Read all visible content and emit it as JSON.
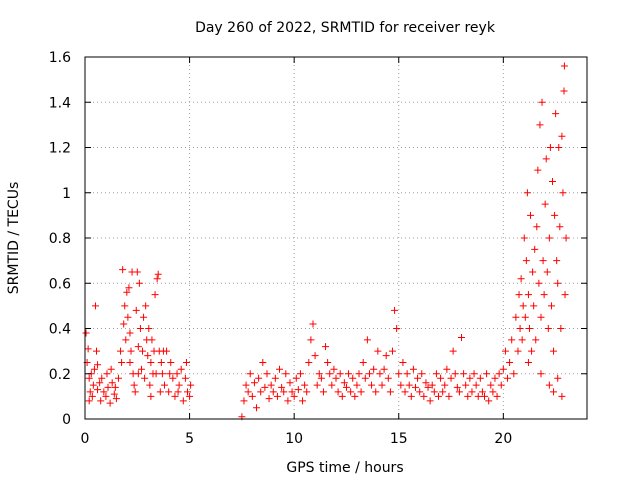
{
  "chart_data": {
    "type": "scatter",
    "title": "Day 260 of 2022, SRMTID for receiver reyk",
    "xlabel": "GPS time / hours",
    "ylabel": "SRMTID / TECUs",
    "xlim": [
      0,
      24
    ],
    "ylim": [
      0,
      1.6
    ],
    "xticks": [
      0,
      5,
      10,
      15,
      20
    ],
    "xtick_labels": [
      "0",
      "5",
      "10",
      "15",
      "20"
    ],
    "yticks": [
      0,
      0.2,
      0.4,
      0.6,
      0.8,
      1,
      1.2,
      1.4,
      1.6
    ],
    "ytick_labels": [
      "0",
      "0.2",
      "0.4",
      "0.6",
      "0.8",
      "1",
      "1.2",
      "1.4",
      "1.6"
    ],
    "grid": true,
    "marker": "+",
    "series": [
      {
        "name": "SRMTID",
        "color": "#ff0000",
        "points": [
          [
            0.05,
            0.38
          ],
          [
            0.1,
            0.25
          ],
          [
            0.15,
            0.31
          ],
          [
            0.2,
            0.18
          ],
          [
            0.25,
            0.12
          ],
          [
            0.3,
            0.2
          ],
          [
            0.35,
            0.1
          ],
          [
            0.4,
            0.15
          ],
          [
            0.45,
            0.22
          ],
          [
            0.5,
            0.5
          ],
          [
            0.55,
            0.3
          ],
          [
            0.6,
            0.13
          ],
          [
            0.7,
            0.16
          ],
          [
            0.75,
            0.08
          ],
          [
            0.8,
            0.18
          ],
          [
            0.9,
            0.12
          ],
          [
            1.0,
            0.1
          ],
          [
            1.05,
            0.2
          ],
          [
            1.1,
            0.14
          ],
          [
            1.2,
            0.07
          ],
          [
            1.3,
            0.16
          ],
          [
            1.4,
            0.11
          ],
          [
            1.5,
            0.09
          ],
          [
            1.6,
            0.18
          ],
          [
            1.7,
            0.3
          ],
          [
            1.8,
            0.66
          ],
          [
            1.85,
            0.42
          ],
          [
            1.9,
            0.5
          ],
          [
            1.95,
            0.35
          ],
          [
            2.0,
            0.56
          ],
          [
            2.05,
            0.45
          ],
          [
            2.1,
            0.58
          ],
          [
            2.15,
            0.38
          ],
          [
            2.2,
            0.3
          ],
          [
            2.25,
            0.65
          ],
          [
            2.3,
            0.2
          ],
          [
            2.35,
            0.15
          ],
          [
            2.4,
            0.12
          ],
          [
            2.45,
            0.48
          ],
          [
            2.5,
            0.65
          ],
          [
            2.55,
            0.32
          ],
          [
            2.6,
            0.6
          ],
          [
            2.65,
            0.4
          ],
          [
            2.7,
            0.22
          ],
          [
            2.75,
            0.3
          ],
          [
            2.8,
            0.45
          ],
          [
            2.85,
            0.18
          ],
          [
            2.9,
            0.5
          ],
          [
            2.95,
            0.35
          ],
          [
            3.0,
            0.28
          ],
          [
            3.05,
            0.4
          ],
          [
            3.1,
            0.15
          ],
          [
            3.15,
            0.25
          ],
          [
            3.2,
            0.35
          ],
          [
            3.25,
            0.2
          ],
          [
            3.3,
            0.3
          ],
          [
            3.35,
            0.55
          ],
          [
            3.4,
            0.2
          ],
          [
            3.45,
            0.62
          ],
          [
            3.5,
            0.64
          ],
          [
            3.55,
            0.3
          ],
          [
            3.6,
            0.12
          ],
          [
            3.65,
            0.25
          ],
          [
            3.7,
            0.2
          ],
          [
            3.8,
            0.15
          ],
          [
            3.9,
            0.3
          ],
          [
            4.0,
            0.12
          ],
          [
            4.1,
            0.25
          ],
          [
            4.2,
            0.18
          ],
          [
            4.3,
            0.1
          ],
          [
            4.4,
            0.2
          ],
          [
            4.5,
            0.15
          ],
          [
            4.6,
            0.22
          ],
          [
            4.7,
            0.08
          ],
          [
            4.8,
            0.18
          ],
          [
            4.9,
            0.12
          ],
          [
            5.0,
            0.1
          ],
          [
            5.05,
            0.15
          ],
          [
            0.2,
            0.08
          ],
          [
            0.6,
            0.24
          ],
          [
            1.25,
            0.22
          ],
          [
            1.45,
            0.14
          ],
          [
            2.15,
            0.25
          ],
          [
            2.55,
            0.2
          ],
          [
            3.15,
            0.1
          ],
          [
            3.75,
            0.3
          ],
          [
            4.05,
            0.2
          ],
          [
            4.45,
            0.12
          ],
          [
            4.85,
            0.25
          ],
          [
            1.75,
            0.25
          ],
          [
            7.5,
            0.01
          ],
          [
            7.6,
            0.08
          ],
          [
            7.7,
            0.15
          ],
          [
            7.8,
            0.12
          ],
          [
            7.9,
            0.2
          ],
          [
            8.0,
            0.1
          ],
          [
            8.1,
            0.16
          ],
          [
            8.2,
            0.05
          ],
          [
            8.3,
            0.18
          ],
          [
            8.4,
            0.12
          ],
          [
            8.5,
            0.25
          ],
          [
            8.6,
            0.14
          ],
          [
            8.7,
            0.2
          ],
          [
            8.8,
            0.09
          ],
          [
            8.9,
            0.15
          ],
          [
            9.0,
            0.12
          ],
          [
            9.1,
            0.18
          ],
          [
            9.2,
            0.1
          ],
          [
            9.3,
            0.22
          ],
          [
            9.4,
            0.14
          ],
          [
            9.5,
            0.12
          ],
          [
            9.6,
            0.2
          ],
          [
            9.7,
            0.08
          ],
          [
            9.8,
            0.16
          ],
          [
            9.9,
            0.12
          ],
          [
            10.0,
            0.1
          ],
          [
            10.1,
            0.18
          ],
          [
            10.2,
            0.13
          ],
          [
            10.3,
            0.2
          ],
          [
            10.4,
            0.08
          ],
          [
            10.5,
            0.15
          ],
          [
            10.6,
            0.12
          ],
          [
            10.7,
            0.25
          ],
          [
            10.8,
            0.35
          ],
          [
            10.9,
            0.42
          ],
          [
            11.0,
            0.28
          ],
          [
            11.1,
            0.15
          ],
          [
            11.2,
            0.2
          ],
          [
            11.3,
            0.18
          ],
          [
            11.4,
            0.12
          ],
          [
            11.5,
            0.32
          ],
          [
            11.6,
            0.25
          ],
          [
            11.7,
            0.2
          ],
          [
            11.8,
            0.15
          ],
          [
            11.9,
            0.22
          ],
          [
            12.0,
            0.18
          ],
          [
            12.1,
            0.12
          ],
          [
            12.2,
            0.2
          ],
          [
            12.3,
            0.1
          ],
          [
            12.4,
            0.16
          ],
          [
            12.5,
            0.14
          ],
          [
            12.6,
            0.2
          ],
          [
            12.7,
            0.12
          ],
          [
            12.8,
            0.18
          ],
          [
            12.9,
            0.1
          ],
          [
            13.0,
            0.15
          ],
          [
            13.1,
            0.2
          ],
          [
            13.2,
            0.12
          ],
          [
            13.3,
            0.25
          ],
          [
            13.4,
            0.18
          ],
          [
            13.5,
            0.35
          ],
          [
            13.6,
            0.2
          ],
          [
            13.7,
            0.15
          ],
          [
            13.8,
            0.22
          ],
          [
            13.9,
            0.12
          ],
          [
            14.0,
            0.3
          ],
          [
            14.1,
            0.2
          ],
          [
            14.2,
            0.15
          ],
          [
            14.3,
            0.22
          ],
          [
            14.4,
            0.28
          ],
          [
            14.5,
            0.18
          ],
          [
            14.6,
            0.12
          ],
          [
            14.7,
            0.3
          ],
          [
            14.8,
            0.48
          ],
          [
            14.9,
            0.4
          ],
          [
            15.0,
            0.2
          ],
          [
            15.1,
            0.15
          ],
          [
            15.2,
            0.25
          ],
          [
            15.3,
            0.12
          ],
          [
            15.4,
            0.2
          ],
          [
            15.5,
            0.15
          ],
          [
            15.6,
            0.1
          ],
          [
            15.7,
            0.22
          ],
          [
            15.8,
            0.14
          ],
          [
            15.9,
            0.18
          ],
          [
            16.0,
            0.12
          ],
          [
            16.1,
            0.2
          ],
          [
            16.2,
            0.1
          ],
          [
            16.3,
            0.16
          ],
          [
            16.4,
            0.14
          ],
          [
            16.5,
            0.08
          ],
          [
            16.6,
            0.15
          ],
          [
            16.7,
            0.12
          ],
          [
            16.8,
            0.2
          ],
          [
            16.9,
            0.1
          ],
          [
            17.0,
            0.18
          ],
          [
            17.1,
            0.12
          ],
          [
            17.2,
            0.15
          ],
          [
            17.3,
            0.22
          ],
          [
            17.4,
            0.1
          ],
          [
            17.5,
            0.18
          ],
          [
            17.6,
            0.3
          ],
          [
            17.7,
            0.2
          ],
          [
            17.8,
            0.14
          ],
          [
            17.9,
            0.12
          ],
          [
            18.0,
            0.36
          ],
          [
            18.1,
            0.2
          ],
          [
            18.2,
            0.15
          ],
          [
            18.3,
            0.1
          ],
          [
            18.4,
            0.18
          ],
          [
            18.5,
            0.12
          ],
          [
            18.6,
            0.2
          ],
          [
            18.7,
            0.15
          ],
          [
            18.8,
            0.1
          ],
          [
            18.9,
            0.18
          ],
          [
            19.0,
            0.12
          ],
          [
            19.1,
            0.1
          ],
          [
            19.2,
            0.2
          ],
          [
            19.3,
            0.08
          ],
          [
            19.4,
            0.15
          ],
          [
            19.5,
            0.12
          ],
          [
            19.6,
            0.18
          ],
          [
            19.7,
            0.1
          ],
          [
            19.8,
            0.2
          ],
          [
            19.9,
            0.15
          ],
          [
            20.0,
            0.22
          ],
          [
            20.1,
            0.3
          ],
          [
            20.2,
            0.18
          ],
          [
            20.3,
            0.25
          ],
          [
            20.4,
            0.35
          ],
          [
            20.5,
            0.2
          ],
          [
            20.6,
            0.45
          ],
          [
            20.7,
            0.3
          ],
          [
            20.75,
            0.55
          ],
          [
            20.8,
            0.4
          ],
          [
            20.85,
            0.62
          ],
          [
            20.9,
            0.35
          ],
          [
            20.95,
            0.5
          ],
          [
            21.0,
            0.8
          ],
          [
            21.05,
            0.45
          ],
          [
            21.1,
            0.7
          ],
          [
            21.15,
            1.0
          ],
          [
            21.2,
            0.55
          ],
          [
            21.25,
            0.4
          ],
          [
            21.3,
            0.9
          ],
          [
            21.35,
            0.3
          ],
          [
            21.4,
            0.65
          ],
          [
            21.45,
            0.5
          ],
          [
            21.5,
            0.75
          ],
          [
            21.55,
            0.35
          ],
          [
            21.6,
            0.85
          ],
          [
            21.65,
            1.1
          ],
          [
            21.7,
            0.6
          ],
          [
            21.75,
            1.3
          ],
          [
            21.8,
            0.45
          ],
          [
            21.85,
            1.4
          ],
          [
            21.9,
            0.7
          ],
          [
            21.95,
            0.55
          ],
          [
            22.0,
            0.95
          ],
          [
            22.05,
            1.15
          ],
          [
            22.1,
            0.65
          ],
          [
            22.15,
            0.4
          ],
          [
            22.2,
            0.8
          ],
          [
            22.25,
            1.2
          ],
          [
            22.3,
            0.5
          ],
          [
            22.35,
            1.05
          ],
          [
            22.4,
            0.3
          ],
          [
            22.45,
            0.9
          ],
          [
            22.5,
            1.35
          ],
          [
            22.55,
            0.7
          ],
          [
            22.6,
            0.6
          ],
          [
            22.65,
            1.2
          ],
          [
            22.7,
            0.85
          ],
          [
            22.75,
            0.4
          ],
          [
            22.8,
            1.25
          ],
          [
            22.85,
            1.0
          ],
          [
            22.9,
            1.45
          ],
          [
            22.92,
            1.56
          ],
          [
            22.95,
            0.55
          ],
          [
            23.0,
            0.8
          ],
          [
            22.2,
            0.15
          ],
          [
            22.6,
            0.18
          ],
          [
            22.8,
            0.1
          ],
          [
            21.2,
            0.25
          ],
          [
            21.8,
            0.2
          ],
          [
            22.4,
            0.12
          ]
        ]
      }
    ]
  }
}
